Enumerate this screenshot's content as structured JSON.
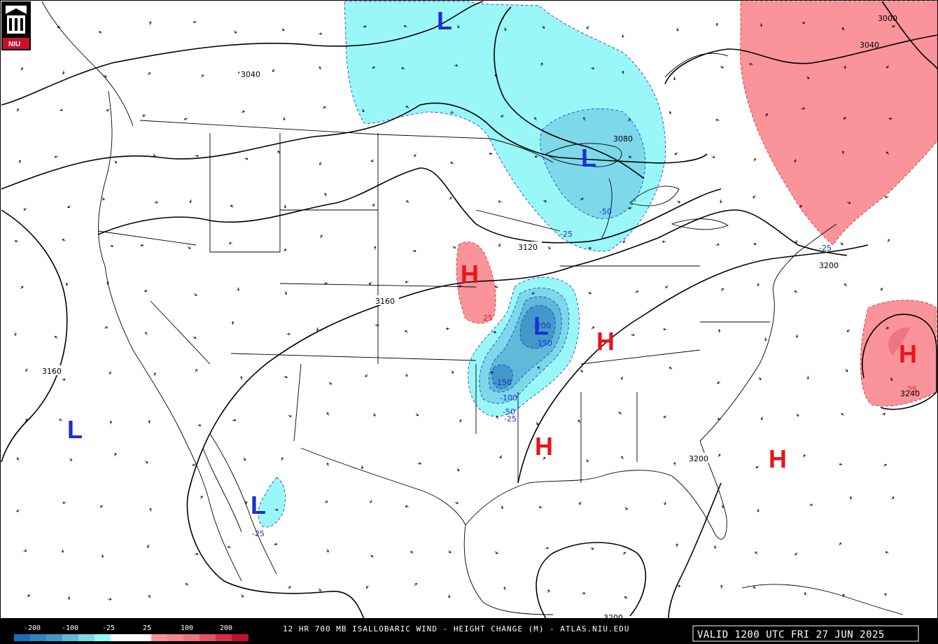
{
  "map": {
    "product": "12 HR 700 MB ISALLOBARIC WIND - HEIGHT CHANGE (M) - ATLAS.NIU.EDU",
    "valid": "VALID 1200 UTC FRI 27 JUN 2025",
    "logo": "NIU",
    "colors": {
      "neg_25": "#99f7f7",
      "neg_50": "#7dd9e9",
      "neg_100": "#5fb9d9",
      "neg_150": "#4198c9",
      "pos_25": "#fa939a",
      "pos_100": "#ef7480",
      "coast": "#000000",
      "contour": "#000000"
    },
    "color_scale": {
      "labels": [
        "-200",
        "-100",
        "-25",
        "25",
        "100",
        "200"
      ]
    },
    "height_contour_labels": [
      "3040",
      "3080",
      "3120",
      "3160",
      "3200",
      "3240",
      "3000",
      "3040",
      "3160",
      "3200",
      "3200"
    ],
    "change_labels": [
      "-25",
      "-50",
      "-25",
      "-200",
      "-150",
      "-150",
      "-100",
      "-50",
      "-25",
      "-25",
      "25",
      "25"
    ],
    "centers": [
      {
        "type": "L",
        "label": "L"
      },
      {
        "type": "L",
        "label": "L"
      },
      {
        "type": "L",
        "label": "L"
      },
      {
        "type": "L",
        "label": "L"
      },
      {
        "type": "L",
        "label": "L"
      },
      {
        "type": "H",
        "label": "H"
      },
      {
        "type": "H",
        "label": "H"
      },
      {
        "type": "H",
        "label": "H"
      },
      {
        "type": "H",
        "label": "H"
      },
      {
        "type": "H",
        "label": "H"
      }
    ]
  }
}
